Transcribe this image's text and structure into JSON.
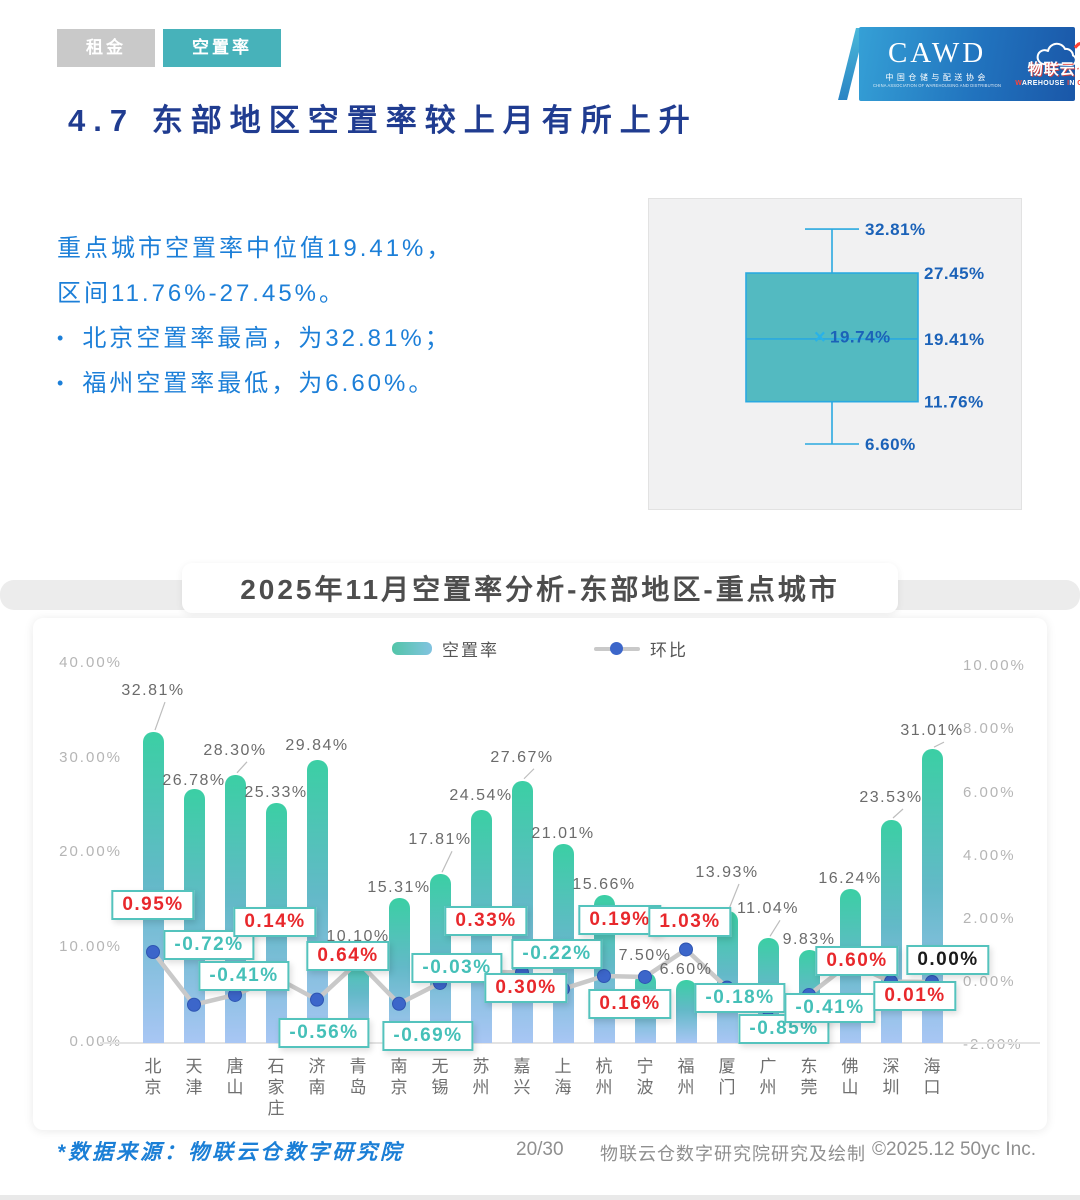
{
  "colors": {
    "tab_active": "#47b2ba",
    "tab_inactive": "#c9c9c9",
    "title_navy": "#203c90",
    "body_blue": "#1c7fd8",
    "box_fill": "#53bac1",
    "box_stroke": "#2aa9e0",
    "box_label_blue": "#1b62b8",
    "bar_gradient_top": "#3bcfa4",
    "bar_gradient_bottom": "#a8c6f4",
    "trend_line": "#c9c9c9",
    "trend_dot": "#3c66ca",
    "callout_border": "#54c3bd",
    "positive_red": "#e8282c",
    "negative_teal": "#45c0b8",
    "zero_black": "#1a1a1a",
    "axis_gray": "#b5b5b5",
    "bar_label_gray": "#6b6b6b"
  },
  "page": {
    "tabs": [
      {
        "label": "租金",
        "active": false
      },
      {
        "label": "空置率",
        "active": true
      }
    ],
    "title": "4.7 东部地区空置率较上月有所上升",
    "summary": {
      "line1": "重点城市空置率中位值19.41%，",
      "line2": "区间11.76%-27.45%。",
      "bullets": [
        "北京空置率最高，为32.81%；",
        "福州空置率最低，为6.60%。"
      ]
    },
    "logo": {
      "cawd": "CAWD",
      "cawd_cn": "中国仓储与配送协会",
      "cawd_en": "CHINA ASSOCIATION OF WAREHOUSING AND DISTRIBUTION",
      "cloud_cn": "物联云仓",
      "cloud_en": "WAREHOUSE IN CLOUD"
    },
    "footer": {
      "source": "*数据来源：物联云仓数字研究院",
      "page_no": "20/30",
      "credit": "物联云仓数字研究院研究及绘制",
      "copyright": "©2025.12 50yc Inc."
    }
  },
  "boxplot": {
    "max": 32.81,
    "q3": 27.45,
    "mean": 19.74,
    "median": 19.41,
    "q1": 11.76,
    "min": 6.6
  },
  "chart_data": {
    "type": "bar",
    "title": "2025年11月空置率分析-东部地区-重点城市",
    "categories": [
      "北京",
      "天津",
      "唐山",
      "石家庄",
      "济南",
      "青岛",
      "南京",
      "无锡",
      "苏州",
      "嘉兴",
      "上海",
      "杭州",
      "宁波",
      "福州",
      "厦门",
      "广州",
      "东莞",
      "佛山",
      "深圳",
      "海口"
    ],
    "series": [
      {
        "name": "空置率",
        "type": "bar",
        "axis": "left",
        "unit": "%",
        "values": [
          32.81,
          26.78,
          28.3,
          25.33,
          29.84,
          10.1,
          15.31,
          17.81,
          24.54,
          27.67,
          21.01,
          15.66,
          7.5,
          6.6,
          13.93,
          11.04,
          9.83,
          16.24,
          23.53,
          31.01
        ]
      },
      {
        "name": "环比",
        "type": "line",
        "axis": "right",
        "unit": "%",
        "values": [
          0.95,
          -0.72,
          -0.41,
          0.14,
          -0.56,
          0.64,
          -0.69,
          -0.03,
          0.33,
          0.3,
          -0.22,
          0.19,
          0.16,
          1.03,
          -0.18,
          -0.85,
          -0.41,
          0.6,
          0.01,
          0.0
        ]
      }
    ],
    "left_axis": {
      "min": 0,
      "max": 40,
      "tick_step": 10,
      "format": "0.00%"
    },
    "right_axis": {
      "min": -2,
      "max": 10,
      "tick_step": 2,
      "format": "0.00%"
    },
    "legend_position": "top",
    "grid": false
  }
}
